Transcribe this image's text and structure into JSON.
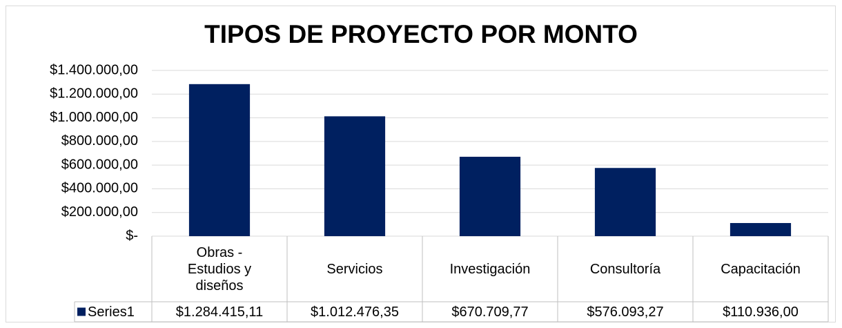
{
  "chart_data": {
    "type": "bar",
    "title": "TIPOS DE PROYECTO POR MONTO",
    "categories": [
      "Obras - Estudios y diseños",
      "Servicios",
      "Investigación",
      "Consultoría",
      "Capacitación"
    ],
    "series": [
      {
        "name": "Series1",
        "color": "#002060",
        "values": [
          1284415.11,
          1012476.35,
          670709.77,
          576093.27,
          110936.0
        ],
        "value_labels": [
          "$1.284.415,11",
          "$1.012.476,35",
          "$670.709,77",
          "$576.093,27",
          "$110.936,00"
        ]
      }
    ],
    "ylim": [
      0,
      1400000
    ],
    "yticks": [
      {
        "value": 0,
        "label": "$-"
      },
      {
        "value": 200000,
        "label": "$200.000,00"
      },
      {
        "value": 400000,
        "label": "$400.000,00"
      },
      {
        "value": 600000,
        "label": "$600.000,00"
      },
      {
        "value": 800000,
        "label": "$800.000,00"
      },
      {
        "value": 1000000,
        "label": "$1.000.000,00"
      },
      {
        "value": 1200000,
        "label": "$1.200.000,00"
      },
      {
        "value": 1400000,
        "label": "$1.400.000,00"
      }
    ],
    "grid": true
  }
}
